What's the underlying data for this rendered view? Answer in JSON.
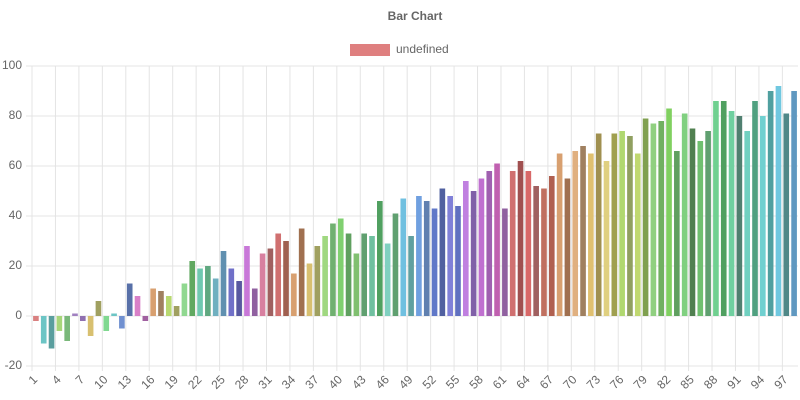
{
  "chart_data": {
    "type": "bar",
    "title": "Bar Chart",
    "categories": [
      1,
      null,
      null,
      4,
      null,
      null,
      7,
      null,
      null,
      10,
      null,
      null,
      13,
      null,
      null,
      16,
      null,
      null,
      19,
      null,
      null,
      22,
      null,
      null,
      25,
      null,
      null,
      28,
      null,
      null,
      31,
      null,
      null,
      34,
      null,
      null,
      37,
      null,
      null,
      40,
      null,
      null,
      43,
      null,
      null,
      46,
      null,
      null,
      49,
      null,
      null,
      52,
      null,
      null,
      55,
      null,
      null,
      58,
      null,
      null,
      61,
      null,
      null,
      64,
      null,
      null,
      67,
      null,
      null,
      70,
      null,
      null,
      73,
      null,
      null,
      76,
      null,
      null,
      79,
      null,
      null,
      82,
      null,
      null,
      85,
      null,
      null,
      88,
      null,
      null,
      91,
      null,
      null,
      94,
      null,
      null,
      97,
      null
    ],
    "series": [
      {
        "name": "undefined",
        "color": "#df7f7f",
        "values": [
          -2,
          -11,
          -13,
          -6,
          -10,
          1,
          -2,
          -8,
          6,
          -6,
          1,
          -5,
          13,
          8,
          -2,
          11,
          10,
          8,
          4,
          13,
          22,
          19,
          20,
          15,
          26,
          19,
          14,
          28,
          11,
          25,
          27,
          33,
          30,
          17,
          35,
          21,
          28,
          32,
          37,
          39,
          33,
          25,
          33,
          32,
          46,
          29,
          41,
          47,
          32,
          48,
          46,
          43,
          51,
          48,
          44,
          54,
          50,
          55,
          58,
          61,
          43,
          58,
          62,
          58,
          52,
          51,
          56,
          65,
          55,
          66,
          68,
          65,
          73,
          62,
          73,
          74,
          72,
          65,
          79,
          77,
          78,
          83,
          66,
          81,
          75,
          70,
          74,
          86,
          86,
          82,
          80,
          74,
          86,
          80,
          90,
          92,
          81,
          90
        ],
        "colors": [
          "#d98080",
          "#6cc5c5",
          "#5a9e9e",
          "#a8d67a",
          "#7ab87a",
          "#a080c0",
          "#9070b0",
          "#d8c070",
          "#a0a060",
          "#80d890",
          "#6cc5c5",
          "#7090d0",
          "#5870a8",
          "#d880c8",
          "#a060a0",
          "#d8a070",
          "#a08060",
          "#b8d870",
          "#a0a060",
          "#90d890",
          "#60a860",
          "#70c8b0",
          "#60a880",
          "#70b0c0",
          "#6090b0",
          "#7070c8",
          "#5858a0",
          "#c878d8",
          "#9060a0",
          "#d880a0",
          "#a06060",
          "#d07070",
          "#a06050",
          "#d8a070",
          "#a07050",
          "#d8c070",
          "#a0a060",
          "#a0d880",
          "#70b070",
          "#80d070",
          "#60a060",
          "#80c070",
          "#60a070",
          "#70c0a0",
          "#50a060",
          "#80d0c0",
          "#60a070",
          "#70c0e0",
          "#60a0a0",
          "#70a0e0",
          "#6080b0",
          "#6078c8",
          "#5060a0",
          "#8080d8",
          "#6070c0",
          "#c080e0",
          "#8060a8",
          "#c070d0",
          "#a060b0",
          "#c060b0",
          "#9060a0",
          "#d07070",
          "#a05050",
          "#d86868",
          "#a06060",
          "#c07060",
          "#b06050",
          "#d8a070",
          "#a07050",
          "#e0b080",
          "#a08060",
          "#e0c070",
          "#a09050",
          "#e0d080",
          "#a0a050",
          "#b0d870",
          "#90a060",
          "#c0d870",
          "#80a050",
          "#90d080",
          "#70b060",
          "#80d060",
          "#60a060",
          "#80d080",
          "#508050",
          "#70c070",
          "#60a070",
          "#70d090",
          "#50a060",
          "#70d0a0",
          "#508070",
          "#70d0c0",
          "#50a080",
          "#70d0d0",
          "#50a0a0",
          "#70c8e0",
          "#508888",
          "#6098c0"
        ]
      }
    ],
    "ylim": [
      -20,
      100
    ],
    "yticks": [
      -20,
      0,
      20,
      40,
      60,
      80,
      100
    ],
    "grid": true
  }
}
